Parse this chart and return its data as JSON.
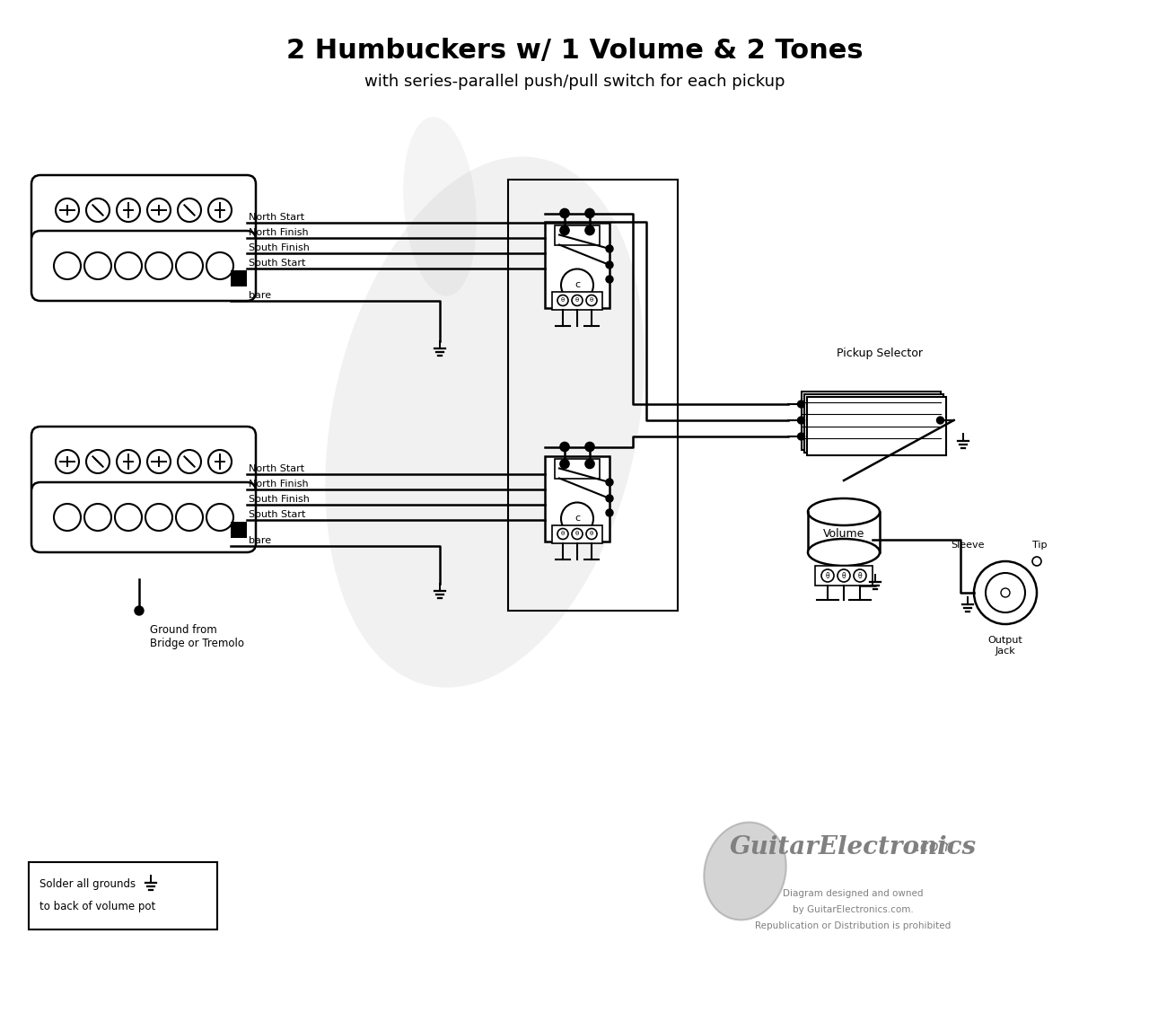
{
  "title": "2 Humbuckers w/ 1 Volume & 2 Tones",
  "subtitle": "with series-parallel push/pull switch for each pickup",
  "bg_color": "#ffffff",
  "title_fontsize": 22,
  "subtitle_fontsize": 13,
  "label_neck_wires": [
    "North Start",
    "North Finish",
    "South Finish",
    "South Start",
    "bare"
  ],
  "label_bridge_wires": [
    "North Start",
    "North Finish",
    "South Finish",
    "South Start",
    "bare"
  ],
  "ground_label": "Ground from\nBridge or Tremolo",
  "pickup_selector_label": "Pickup Selector",
  "volume_label": "Volume",
  "sleeve_label": "Sleeve",
  "tip_label": "Tip",
  "output_jack_label": "Output\nJack",
  "copyright1": "Diagram designed and owned",
  "copyright2": "by GuitarElectronics.com.",
  "copyright3": "Republication or Distribution is prohibited",
  "note_line1": "Solder all grounds",
  "note_line2": "to back of volume pot"
}
